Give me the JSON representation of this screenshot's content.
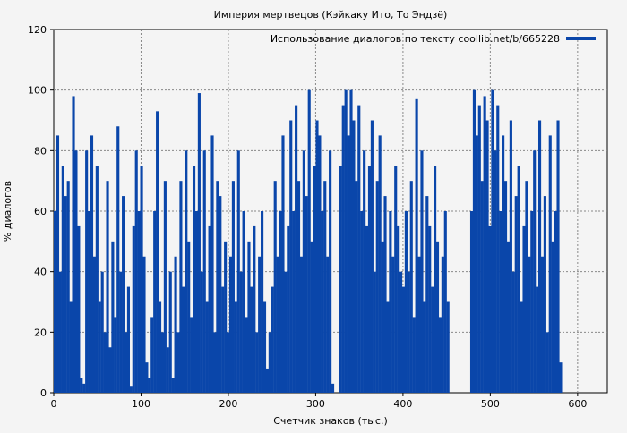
{
  "chart_data": {
    "type": "bar",
    "title": "Империя мертвецов (Кэйкаку Ито, То Эндзё)",
    "xlabel": "Счетчик знаков (тыс.)",
    "ylabel": "% диалогов",
    "xlim": [
      0,
      634
    ],
    "ylim": [
      0,
      120
    ],
    "xticks": [
      "0",
      "100",
      "200",
      "300",
      "400",
      "500",
      "600"
    ],
    "yticks": [
      "0",
      "20",
      "40",
      "60",
      "80",
      "100",
      "120"
    ],
    "grid": true,
    "legend": {
      "label": "Использование диалогов по тексту coollib.net/b/665228",
      "position": "top-right"
    },
    "color": "#0a46aa",
    "x_step": 3,
    "values": [
      60,
      85,
      40,
      75,
      65,
      70,
      30,
      98,
      80,
      55,
      5,
      3,
      80,
      60,
      85,
      45,
      75,
      30,
      40,
      20,
      70,
      15,
      50,
      25,
      88,
      40,
      65,
      20,
      35,
      2,
      55,
      80,
      60,
      75,
      45,
      10,
      5,
      25,
      60,
      93,
      30,
      20,
      70,
      15,
      40,
      5,
      45,
      20,
      70,
      35,
      80,
      50,
      25,
      75,
      60,
      99,
      40,
      80,
      30,
      55,
      85,
      20,
      70,
      65,
      35,
      50,
      20,
      45,
      70,
      30,
      80,
      40,
      60,
      25,
      50,
      35,
      55,
      20,
      45,
      60,
      30,
      8,
      20,
      35,
      70,
      45,
      60,
      85,
      40,
      55,
      90,
      60,
      95,
      70,
      45,
      80,
      65,
      100,
      50,
      75,
      90,
      85,
      60,
      70,
      45,
      80,
      3,
      0,
      0,
      75,
      95,
      100,
      85,
      100,
      90,
      70,
      95,
      60,
      80,
      55,
      75,
      90,
      40,
      70,
      85,
      50,
      65,
      30,
      60,
      45,
      75,
      55,
      40,
      35,
      60,
      40,
      70,
      25,
      97,
      45,
      80,
      30,
      65,
      55,
      35,
      75,
      50,
      25,
      45,
      60,
      30,
      0,
      0,
      0,
      0,
      0,
      0,
      0,
      0,
      60,
      100,
      85,
      95,
      70,
      98,
      90,
      55,
      100,
      80,
      95,
      60,
      85,
      70,
      50,
      90,
      40,
      65,
      75,
      30,
      55,
      70,
      45,
      60,
      80,
      35,
      90,
      45,
      65,
      20,
      85,
      50,
      60,
      90,
      10
    ]
  }
}
